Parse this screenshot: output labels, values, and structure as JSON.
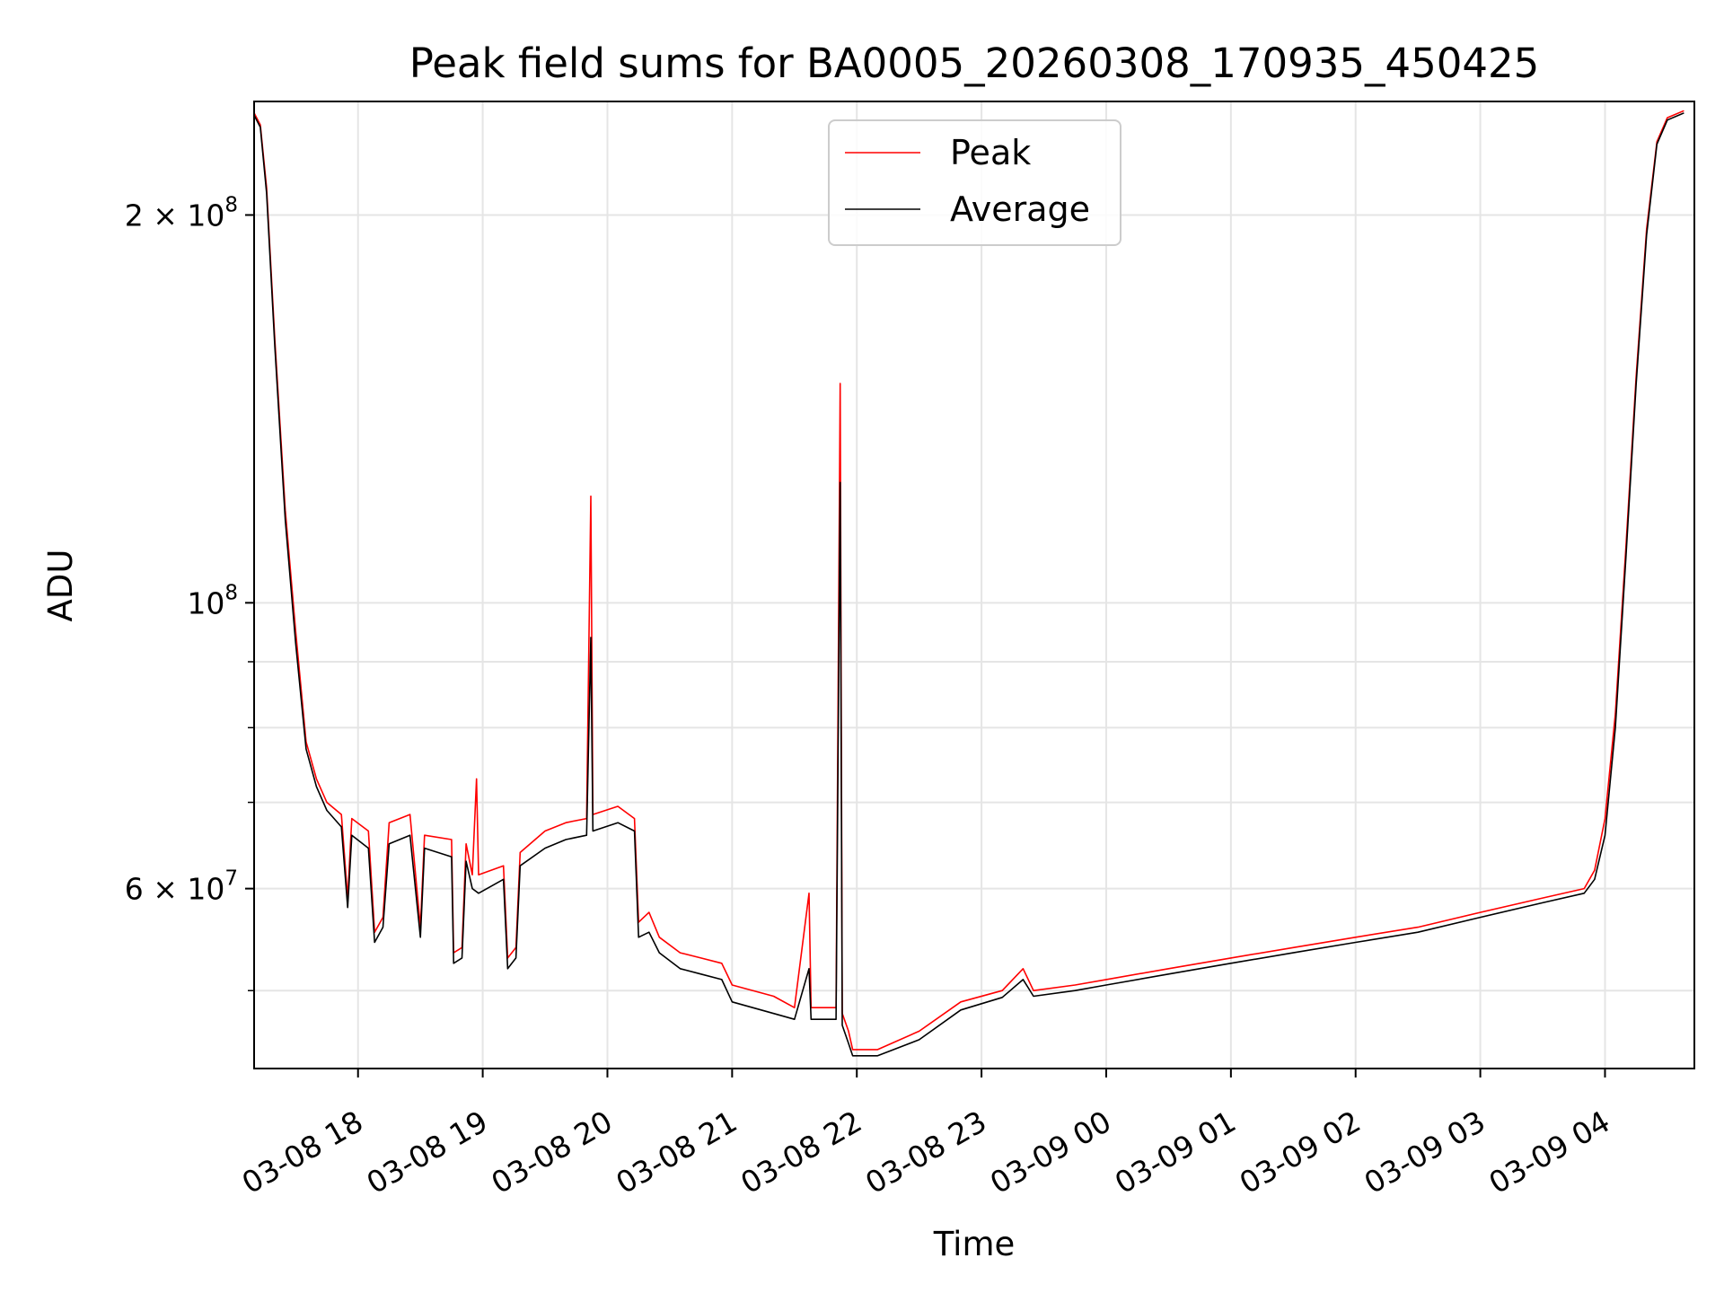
{
  "chart_data": {
    "type": "line",
    "title": "Peak field sums for BA0005_20260308_170935_450425",
    "xlabel": "Time",
    "ylabel": "ADU",
    "yscale": "log",
    "ylim": [
      43500000,
      245000000
    ],
    "xlim": [
      "2026-03-08 17:10",
      "2026-03-09 04:43"
    ],
    "grid": true,
    "legend_position": "upper-center",
    "x_ticks": [
      "03-08 18",
      "03-08 19",
      "03-08 20",
      "03-08 21",
      "03-08 22",
      "03-08 23",
      "03-09 00",
      "03-09 01",
      "03-09 02",
      "03-09 03",
      "03-09 04"
    ],
    "y_ticks_major": [
      {
        "label": "10",
        "exp": "8",
        "value": 100000000
      },
      {
        "label": "2 × 10",
        "exp": "8",
        "value": 200000000
      },
      {
        "label": "6 × 10",
        "exp": "7",
        "value": 60000000
      }
    ],
    "y_ticks_minor": [
      50000000,
      70000000,
      80000000,
      90000000,
      300000000
    ],
    "series": [
      {
        "name": "Peak",
        "color": "#ff0000",
        "points": [
          [
            "2026-03-08 17:10",
            240000000
          ],
          [
            "2026-03-08 17:13",
            235000000
          ],
          [
            "2026-03-08 17:16",
            210000000
          ],
          [
            "2026-03-08 17:20",
            160000000
          ],
          [
            "2026-03-08 17:25",
            118000000
          ],
          [
            "2026-03-08 17:30",
            95000000
          ],
          [
            "2026-03-08 17:35",
            78000000
          ],
          [
            "2026-03-08 17:40",
            73000000
          ],
          [
            "2026-03-08 17:45",
            70000000
          ],
          [
            "2026-03-08 17:52",
            68500000
          ],
          [
            "2026-03-08 17:55",
            59000000
          ],
          [
            "2026-03-08 17:57",
            68000000
          ],
          [
            "2026-03-08 18:05",
            66500000
          ],
          [
            "2026-03-08 18:08",
            55500000
          ],
          [
            "2026-03-08 18:12",
            57000000
          ],
          [
            "2026-03-08 18:15",
            67500000
          ],
          [
            "2026-03-08 18:25",
            68500000
          ],
          [
            "2026-03-08 18:30",
            56000000
          ],
          [
            "2026-03-08 18:32",
            66000000
          ],
          [
            "2026-03-08 18:45",
            65500000
          ],
          [
            "2026-03-08 18:46",
            53500000
          ],
          [
            "2026-03-08 18:50",
            54000000
          ],
          [
            "2026-03-08 18:52",
            65000000
          ],
          [
            "2026-03-08 18:55",
            61500000
          ],
          [
            "2026-03-08 18:57",
            73000000
          ],
          [
            "2026-03-08 18:58",
            61500000
          ],
          [
            "2026-03-08 19:10",
            62500000
          ],
          [
            "2026-03-08 19:12",
            53000000
          ],
          [
            "2026-03-08 19:16",
            54000000
          ],
          [
            "2026-03-08 19:18",
            64000000
          ],
          [
            "2026-03-08 19:30",
            66500000
          ],
          [
            "2026-03-08 19:40",
            67500000
          ],
          [
            "2026-03-08 19:50",
            68000000
          ],
          [
            "2026-03-08 19:52",
            121000000
          ],
          [
            "2026-03-08 19:53",
            68500000
          ],
          [
            "2026-03-08 20:05",
            69500000
          ],
          [
            "2026-03-08 20:13",
            68000000
          ],
          [
            "2026-03-08 20:15",
            56500000
          ],
          [
            "2026-03-08 20:20",
            57500000
          ],
          [
            "2026-03-08 20:25",
            55000000
          ],
          [
            "2026-03-08 20:35",
            53500000
          ],
          [
            "2026-03-08 20:45",
            53000000
          ],
          [
            "2026-03-08 20:55",
            52500000
          ],
          [
            "2026-03-08 21:00",
            50500000
          ],
          [
            "2026-03-08 21:20",
            49500000
          ],
          [
            "2026-03-08 21:30",
            48500000
          ],
          [
            "2026-03-08 21:37",
            59500000
          ],
          [
            "2026-03-08 21:38",
            48500000
          ],
          [
            "2026-03-08 21:50",
            48500000
          ],
          [
            "2026-03-08 21:52",
            148000000
          ],
          [
            "2026-03-08 21:53",
            48000000
          ],
          [
            "2026-03-08 21:56",
            46500000
          ],
          [
            "2026-03-08 21:58",
            45000000
          ],
          [
            "2026-03-08 22:10",
            45000000
          ],
          [
            "2026-03-08 22:30",
            46500000
          ],
          [
            "2026-03-08 22:50",
            49000000
          ],
          [
            "2026-03-08 23:10",
            50000000
          ],
          [
            "2026-03-08 23:20",
            52000000
          ],
          [
            "2026-03-08 23:25",
            50000000
          ],
          [
            "2026-03-08 23:45",
            50500000
          ],
          [
            "2026-03-09 00:00",
            51000000
          ],
          [
            "2026-03-09 00:30",
            52000000
          ],
          [
            "2026-03-09 01:00",
            53000000
          ],
          [
            "2026-03-09 01:30",
            54000000
          ],
          [
            "2026-03-09 02:00",
            55000000
          ],
          [
            "2026-03-09 02:30",
            56000000
          ],
          [
            "2026-03-09 03:00",
            57500000
          ],
          [
            "2026-03-09 03:30",
            59000000
          ],
          [
            "2026-03-09 03:50",
            60000000
          ],
          [
            "2026-03-09 03:55",
            62000000
          ],
          [
            "2026-03-09 04:00",
            68000000
          ],
          [
            "2026-03-09 04:05",
            82000000
          ],
          [
            "2026-03-09 04:10",
            110000000
          ],
          [
            "2026-03-09 04:15",
            150000000
          ],
          [
            "2026-03-09 04:20",
            195000000
          ],
          [
            "2026-03-09 04:25",
            228000000
          ],
          [
            "2026-03-09 04:30",
            238000000
          ],
          [
            "2026-03-09 04:38",
            241000000
          ]
        ]
      },
      {
        "name": "Average",
        "color": "#000000",
        "points": [
          [
            "2026-03-08 17:10",
            239000000
          ],
          [
            "2026-03-08 17:13",
            234000000
          ],
          [
            "2026-03-08 17:16",
            208000000
          ],
          [
            "2026-03-08 17:20",
            158000000
          ],
          [
            "2026-03-08 17:25",
            116000000
          ],
          [
            "2026-03-08 17:30",
            93000000
          ],
          [
            "2026-03-08 17:35",
            77000000
          ],
          [
            "2026-03-08 17:40",
            72000000
          ],
          [
            "2026-03-08 17:45",
            69000000
          ],
          [
            "2026-03-08 17:52",
            67000000
          ],
          [
            "2026-03-08 17:55",
            58000000
          ],
          [
            "2026-03-08 17:57",
            66000000
          ],
          [
            "2026-03-08 18:05",
            64500000
          ],
          [
            "2026-03-08 18:08",
            54500000
          ],
          [
            "2026-03-08 18:12",
            56000000
          ],
          [
            "2026-03-08 18:15",
            65000000
          ],
          [
            "2026-03-08 18:25",
            66000000
          ],
          [
            "2026-03-08 18:30",
            55000000
          ],
          [
            "2026-03-08 18:32",
            64500000
          ],
          [
            "2026-03-08 18:45",
            63500000
          ],
          [
            "2026-03-08 18:46",
            52500000
          ],
          [
            "2026-03-08 18:50",
            53000000
          ],
          [
            "2026-03-08 18:52",
            63000000
          ],
          [
            "2026-03-08 18:55",
            60000000
          ],
          [
            "2026-03-08 18:58",
            59500000
          ],
          [
            "2026-03-08 19:10",
            61000000
          ],
          [
            "2026-03-08 19:12",
            52000000
          ],
          [
            "2026-03-08 19:16",
            53000000
          ],
          [
            "2026-03-08 19:18",
            62500000
          ],
          [
            "2026-03-08 19:30",
            64500000
          ],
          [
            "2026-03-08 19:40",
            65500000
          ],
          [
            "2026-03-08 19:50",
            66000000
          ],
          [
            "2026-03-08 19:52",
            94000000
          ],
          [
            "2026-03-08 19:53",
            66500000
          ],
          [
            "2026-03-08 20:05",
            67500000
          ],
          [
            "2026-03-08 20:13",
            66500000
          ],
          [
            "2026-03-08 20:15",
            55000000
          ],
          [
            "2026-03-08 20:20",
            55500000
          ],
          [
            "2026-03-08 20:25",
            53500000
          ],
          [
            "2026-03-08 20:35",
            52000000
          ],
          [
            "2026-03-08 20:45",
            51500000
          ],
          [
            "2026-03-08 20:55",
            51000000
          ],
          [
            "2026-03-08 21:00",
            49000000
          ],
          [
            "2026-03-08 21:20",
            48000000
          ],
          [
            "2026-03-08 21:30",
            47500000
          ],
          [
            "2026-03-08 21:37",
            52000000
          ],
          [
            "2026-03-08 21:38",
            47500000
          ],
          [
            "2026-03-08 21:50",
            47500000
          ],
          [
            "2026-03-08 21:52",
            124000000
          ],
          [
            "2026-03-08 21:53",
            47000000
          ],
          [
            "2026-03-08 21:56",
            45500000
          ],
          [
            "2026-03-08 21:58",
            44500000
          ],
          [
            "2026-03-08 22:10",
            44500000
          ],
          [
            "2026-03-08 22:30",
            45800000
          ],
          [
            "2026-03-08 22:50",
            48300000
          ],
          [
            "2026-03-08 23:10",
            49400000
          ],
          [
            "2026-03-08 23:20",
            51000000
          ],
          [
            "2026-03-08 23:25",
            49500000
          ],
          [
            "2026-03-08 23:45",
            50000000
          ],
          [
            "2026-03-09 00:00",
            50500000
          ],
          [
            "2026-03-09 00:30",
            51500000
          ],
          [
            "2026-03-09 01:00",
            52500000
          ],
          [
            "2026-03-09 01:30",
            53500000
          ],
          [
            "2026-03-09 02:00",
            54500000
          ],
          [
            "2026-03-09 02:30",
            55500000
          ],
          [
            "2026-03-09 03:00",
            57000000
          ],
          [
            "2026-03-09 03:30",
            58500000
          ],
          [
            "2026-03-09 03:50",
            59500000
          ],
          [
            "2026-03-09 03:55",
            61000000
          ],
          [
            "2026-03-09 04:00",
            66000000
          ],
          [
            "2026-03-09 04:05",
            80000000
          ],
          [
            "2026-03-09 04:10",
            108000000
          ],
          [
            "2026-03-09 04:15",
            148000000
          ],
          [
            "2026-03-09 04:20",
            193000000
          ],
          [
            "2026-03-09 04:25",
            227000000
          ],
          [
            "2026-03-09 04:30",
            237000000
          ],
          [
            "2026-03-09 04:38",
            240000000
          ]
        ]
      }
    ]
  }
}
